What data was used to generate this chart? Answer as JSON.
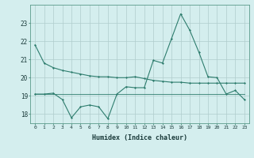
{
  "xlabel": "Humidex (Indice chaleur)",
  "x": [
    0,
    1,
    2,
    3,
    4,
    5,
    6,
    7,
    8,
    9,
    10,
    11,
    12,
    13,
    14,
    15,
    16,
    17,
    18,
    19,
    20,
    21,
    22,
    23
  ],
  "line1": [
    21.8,
    20.8,
    20.55,
    20.4,
    20.3,
    20.2,
    20.1,
    20.05,
    20.05,
    20.0,
    20.0,
    20.05,
    19.95,
    19.85,
    19.8,
    19.75,
    19.75,
    19.7,
    19.7,
    19.7,
    19.7,
    19.7,
    19.7,
    19.7
  ],
  "line2": [
    19.1,
    19.1,
    19.15,
    18.8,
    17.8,
    18.4,
    18.5,
    18.4,
    17.75,
    19.1,
    19.5,
    19.45,
    19.45,
    20.95,
    20.8,
    22.15,
    23.5,
    22.6,
    21.4,
    20.05,
    20.0,
    19.1,
    19.3,
    18.8
  ],
  "line3": [
    19.1,
    19.1,
    19.1,
    19.1,
    19.1,
    19.1,
    19.1,
    19.1,
    19.1,
    19.1,
    19.1,
    19.1,
    19.1,
    19.1,
    19.1,
    19.1,
    19.1,
    19.1,
    19.1,
    19.1,
    19.1,
    19.1,
    19.1,
    19.1
  ],
  "line_color": "#2e7d6e",
  "bg_color": "#d4eeee",
  "grid_color": "#b0cccc",
  "ylim": [
    17.5,
    24.0
  ],
  "yticks": [
    18,
    19,
    20,
    21,
    22,
    23
  ],
  "xticks": [
    0,
    1,
    2,
    3,
    4,
    5,
    6,
    7,
    8,
    9,
    10,
    11,
    12,
    13,
    14,
    15,
    16,
    17,
    18,
    19,
    20,
    21,
    22,
    23
  ]
}
